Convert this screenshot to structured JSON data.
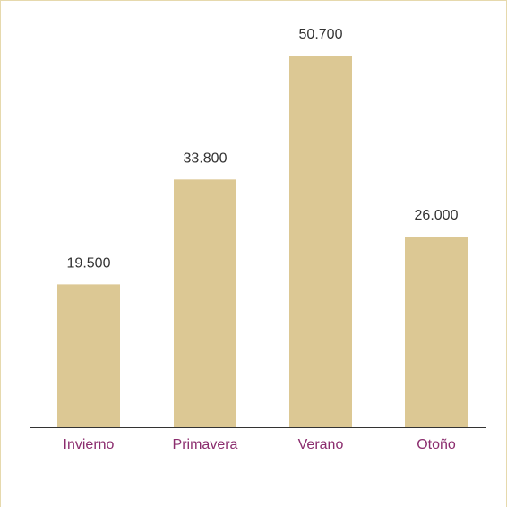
{
  "colors": {
    "bar": "#dcc894",
    "axis": "#333333",
    "category_text": "#8b2d6e",
    "value_text": "#333333",
    "frame": "#e6d9ad"
  },
  "chart_data": {
    "type": "bar",
    "categories": [
      "Invierno",
      "Primavera",
      "Verano",
      "Otoño"
    ],
    "values": [
      19500,
      33800,
      50700,
      26000
    ],
    "value_labels": [
      "19.500",
      "33.800",
      "50.700",
      "26.000"
    ],
    "title": "",
    "xlabel": "",
    "ylabel": "",
    "ylim": [
      0,
      60000
    ],
    "grid": false,
    "legend": "none"
  }
}
